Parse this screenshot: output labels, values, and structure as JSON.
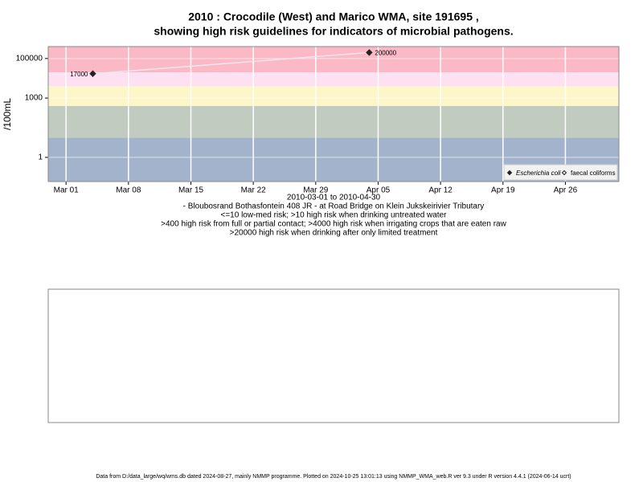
{
  "chart_data": {
    "type": "line",
    "title": [
      "2010 : Crocodile (West) and Marico WMA, site 191695 ,",
      "showing high risk guidelines for indicators of microbial pathogens."
    ],
    "xlabel": [
      "2010-03-01 to 2010-04-30",
      "- Bloubosrand Bothasfontein 408 JR - at Road Bridge on Klein Jukskeirivier Tributary",
      "<=10 low-med risk; >10 high risk when drinking untreated water",
      ">400 high risk from full or partial contact; >4000 high risk when irrigating crops that are eaten raw",
      ">20000 high risk when drinking after only limited treatment"
    ],
    "ylabel": "/100mL",
    "log_y": true,
    "grid": true,
    "legend": "bottom-right",
    "x": [
      "2010-03-04",
      "2010-04-04"
    ],
    "series": [
      {
        "name": "Escherichia coli",
        "color": "#222222",
        "line_color": "#e8e8ee",
        "marker": "diamond",
        "values": [
          17000,
          200000
        ]
      },
      {
        "name": "faecal coliforms",
        "color": "#222222",
        "marker": "open-diamond",
        "values": [
          null,
          null
        ]
      }
    ],
    "bands": [
      {
        "from": 0.06,
        "to": 10,
        "color": "#a3b3cc"
      },
      {
        "from": 10,
        "to": 400,
        "color": "#c1cbc0"
      },
      {
        "from": 400,
        "to": 4000,
        "color": "#fdf6c8"
      },
      {
        "from": 4000,
        "to": 20000,
        "color": "#fde0f2"
      },
      {
        "from": 20000,
        "to": 400000,
        "color": "#fbb9c6"
      }
    ],
    "xlim": [
      "2010-02-27",
      "2010-05-02"
    ],
    "xticks": [
      {
        "value": "2010-03-01",
        "label": "Mar 01"
      },
      {
        "value": "2010-03-08",
        "label": "Mar 08"
      },
      {
        "value": "2010-03-15",
        "label": "Mar 15"
      },
      {
        "value": "2010-03-22",
        "label": "Mar 22"
      },
      {
        "value": "2010-03-29",
        "label": "Mar 29"
      },
      {
        "value": "2010-04-05",
        "label": "Apr 05"
      },
      {
        "value": "2010-04-12",
        "label": "Apr 12"
      },
      {
        "value": "2010-04-19",
        "label": "Apr 19"
      },
      {
        "value": "2010-04-26",
        "label": "Apr 26"
      }
    ],
    "ylim": [
      0.06,
      400000
    ],
    "yticks": [
      1,
      1000,
      100000
    ],
    "footer": "Data from D:/data_large/wq/wms.db dated 2024-08-27, mainly NMMP programme. Plotted on 2024-10-25 13:01:13 using NMMP_WMA_web.R ver 9.3 under R version 4.4.1 (2024-06-14 ucrt)"
  }
}
